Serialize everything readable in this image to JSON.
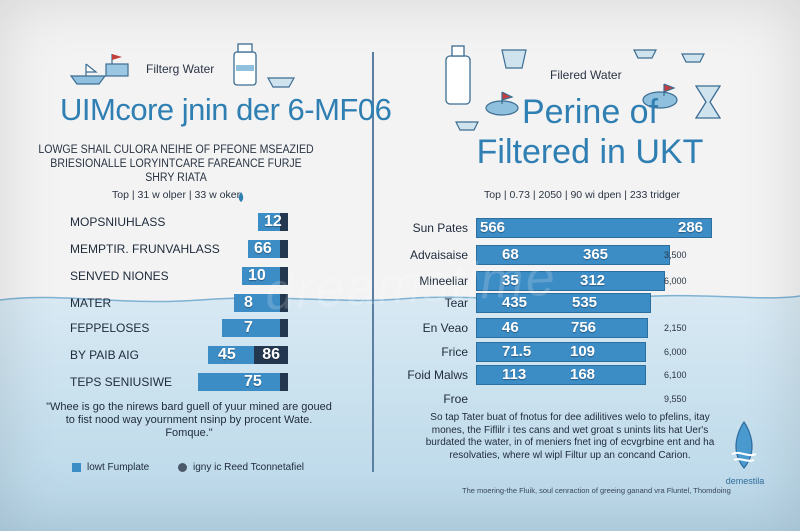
{
  "left": {
    "small_title": "Filterg Water",
    "title": "UIMcore jnin der 6-MF06",
    "subtitle_line1": "LOWGE SHAIL CULORA NEIHE OF PFEONE MSEAZIED",
    "subtitle_line2": "BRIESIONALLE LORYINTCARE FAREANCE FURJE SHRY RIATA",
    "header_top": "Top",
    "header_col1": "31 w olper",
    "header_col2": "33 w oker",
    "rows": [
      {
        "label": "MOPSNIUHLASS",
        "value": "12",
        "level": 0.25
      },
      {
        "label": "MEMPTIR. FRUNVAHLASS",
        "value": "66",
        "level": 0.33
      },
      {
        "label": "SENVED NIONES",
        "value": "10",
        "level": 0.38
      },
      {
        "label": "MATER",
        "value": "8",
        "level": 0.45
      },
      {
        "label": "FEPPELOSES",
        "value": "7",
        "level": 0.55
      },
      {
        "label": "BY PAIB AIG",
        "value": "45",
        "value2": "86",
        "level": 0.67
      },
      {
        "label": "TEPS SENIUSIWE",
        "value": "75",
        "level": 0.75
      }
    ],
    "quote": "\"Whee is go the nirews bard guell of yuur mined are goued to fist nood way yournment nsinp by procent Wate. Fomque.\"",
    "legend": [
      {
        "name": "lowt Fumplate",
        "color": "#3c8cc5"
      },
      {
        "name": "igny ic Reed Tconnetafiel",
        "color": "#4a5a6a"
      }
    ]
  },
  "right": {
    "small_title": "Filered Water",
    "title_line1": "Perine of",
    "title_line2": "Filtered in UKT",
    "header_top": "Top",
    "header_col1": "0.73",
    "header_col2": "2050",
    "header_col3": "90 wi dpen",
    "header_col4": "233 tridger",
    "rows": [
      {
        "label": "Sun Pates",
        "v1": "566",
        "v2": "286",
        "note": "",
        "level": 1.0
      },
      {
        "label": "Advaisaise",
        "v1": "68",
        "v2": "365",
        "note": "3,500",
        "level": 0.82
      },
      {
        "label": "Mineeliar",
        "v1": "35",
        "v2": "312",
        "note": "6,000",
        "level": 0.8
      },
      {
        "label": "Tear",
        "v1": "435",
        "v2": "535",
        "note": "",
        "level": 0.74
      },
      {
        "label": "En Veao",
        "v1": "46",
        "v2": "756",
        "note": "2,150",
        "level": 0.73
      },
      {
        "label": "Frice",
        "v1": "71.5",
        "v2": "109",
        "note": "6,000",
        "level": 0.72
      },
      {
        "label": "Foid Malws",
        "v1": "113",
        "v2": "168",
        "note": "6,100",
        "level": 0.72
      },
      {
        "label": "Froe",
        "v1": "",
        "v2": "",
        "note": "9,550",
        "level": 0.72
      }
    ],
    "note": "So tap Tater buat of fnotus for dee adilitives welo to pfelins, itay mones, the Fiflilr i tes cans and wet groat s unints lits hat Uer's burdated the water, in of meniers fnet ing of ecvgrbine ent and ha resolvaties, where wl wipl Filtur up an concand Carion.",
    "footer": "The moering-the Fluik, soul cenraction of greeing ganand vra Fluntel, Thomdoing",
    "brand": "demestila"
  },
  "watermark": "dreamstime",
  "colors": {
    "accent": "#2f7fb3",
    "bar": "#3c8cc5",
    "dark": "#23384f",
    "water": "#cfe3ef"
  },
  "icons": [
    "filter-jug-icon",
    "water-drop-icon",
    "flask-icon",
    "boat-icon"
  ]
}
